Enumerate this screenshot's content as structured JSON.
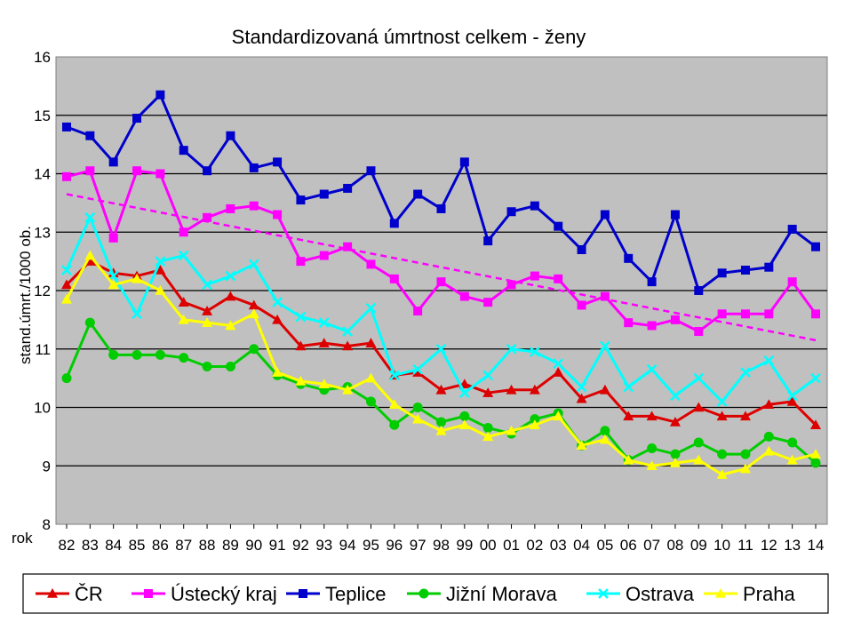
{
  "chart_data": {
    "type": "line",
    "title": "Standardizovaná úmrtnost celkem - ženy",
    "ylabel": "stand.úmrt./1000 ob.",
    "xlabel": "rok",
    "ylim": [
      8,
      16
    ],
    "yticks": [
      "16",
      "15",
      "14",
      "13",
      "12",
      "11",
      "10",
      "9",
      "8"
    ],
    "categories": [
      "82",
      "83",
      "84",
      "85",
      "86",
      "87",
      "88",
      "89",
      "90",
      "91",
      "92",
      "93",
      "94",
      "95",
      "96",
      "97",
      "98",
      "99",
      "00",
      "01",
      "02",
      "03",
      "04",
      "05",
      "06",
      "07",
      "08",
      "09",
      "10",
      "11",
      "12",
      "13",
      "14"
    ],
    "grid": "horizontal",
    "legend_position": "bottom",
    "series": [
      {
        "name": "ČR",
        "color": "#dd0000",
        "marker": "triangle",
        "values": [
          12.1,
          12.5,
          12.3,
          12.25,
          12.35,
          11.8,
          11.65,
          11.9,
          11.75,
          11.5,
          11.05,
          11.1,
          11.05,
          11.1,
          10.55,
          10.6,
          10.3,
          10.4,
          10.25,
          10.3,
          10.3,
          10.6,
          10.15,
          10.3,
          9.85,
          9.85,
          9.75,
          10.0,
          9.85,
          9.85,
          10.05,
          10.1,
          9.7
        ]
      },
      {
        "name": "Ústecký kraj",
        "color": "#ff00ff",
        "marker": "square",
        "values": [
          13.95,
          14.05,
          12.9,
          14.05,
          14.0,
          13.0,
          13.25,
          13.4,
          13.45,
          13.3,
          12.5,
          12.6,
          12.75,
          12.45,
          12.2,
          11.65,
          12.15,
          11.9,
          11.8,
          12.1,
          12.25,
          12.2,
          11.75,
          11.9,
          11.45,
          11.4,
          11.5,
          11.3,
          11.6,
          11.6,
          11.6,
          12.15,
          11.6
        ]
      },
      {
        "name": "Teplice",
        "color": "#0000cc",
        "marker": "square",
        "values": [
          14.8,
          14.65,
          14.2,
          14.95,
          15.35,
          14.4,
          14.05,
          14.65,
          14.1,
          14.2,
          13.55,
          13.65,
          13.75,
          14.05,
          13.15,
          13.65,
          13.4,
          14.2,
          12.85,
          13.35,
          13.45,
          13.1,
          12.7,
          13.3,
          12.55,
          12.15,
          13.3,
          12.0,
          12.3,
          12.35,
          12.4,
          13.05,
          12.75
        ]
      },
      {
        "name": "Jižní Morava",
        "color": "#00cc00",
        "marker": "circle",
        "values": [
          10.5,
          11.45,
          10.9,
          10.9,
          10.9,
          10.85,
          10.7,
          10.7,
          11.0,
          10.55,
          10.4,
          10.3,
          10.35,
          10.1,
          9.7,
          10.0,
          9.75,
          9.85,
          9.65,
          9.55,
          9.8,
          9.9,
          9.35,
          9.6,
          9.1,
          9.3,
          9.2,
          9.4,
          9.2,
          9.2,
          9.5,
          9.4,
          9.05
        ]
      },
      {
        "name": "Ostrava",
        "color": "#00ffff",
        "marker": "x",
        "values": [
          12.35,
          13.25,
          12.25,
          11.6,
          12.5,
          12.6,
          12.1,
          12.25,
          12.45,
          11.8,
          11.55,
          11.45,
          11.3,
          11.7,
          10.55,
          10.65,
          11.0,
          10.25,
          10.55,
          11.0,
          10.95,
          10.75,
          10.35,
          11.05,
          10.35,
          10.65,
          10.2,
          10.5,
          10.1,
          10.6,
          10.8,
          10.2,
          10.5
        ]
      },
      {
        "name": "Praha",
        "color": "#ffff00",
        "marker": "triangle",
        "values": [
          11.85,
          12.6,
          12.1,
          12.2,
          12.0,
          11.5,
          11.45,
          11.4,
          11.6,
          10.6,
          10.45,
          10.4,
          10.3,
          10.5,
          10.05,
          9.8,
          9.6,
          9.7,
          9.5,
          9.6,
          9.7,
          9.85,
          9.35,
          9.45,
          9.1,
          9.0,
          9.05,
          9.1,
          8.85,
          8.95,
          9.25,
          9.1,
          9.2
        ]
      }
    ],
    "trendline": {
      "color": "#ff00ff",
      "style": "dashed",
      "start": 13.65,
      "end": 11.15
    }
  }
}
